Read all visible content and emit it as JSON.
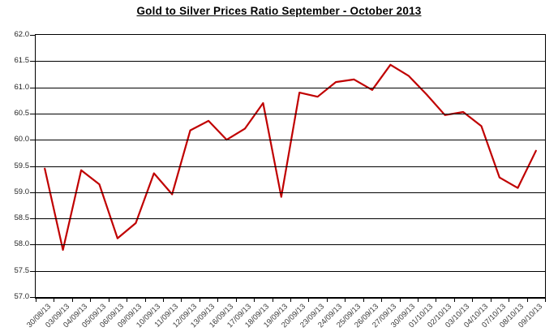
{
  "title": "Gold to Silver Prices Ratio September - October 2013",
  "chart_data": {
    "type": "line",
    "title": "Gold to Silver Prices Ratio September - October 2013",
    "categories": [
      "30/08/13",
      "03/09/13",
      "04/09/13",
      "05/09/13",
      "06/09/13",
      "09/09/13",
      "10/09/13",
      "11/09/13",
      "12/09/13",
      "13/09/13",
      "16/09/13",
      "17/09/13",
      "18/09/13",
      "19/09/13",
      "20/09/13",
      "23/09/13",
      "24/09/13",
      "25/09/13",
      "26/09/13",
      "27/09/13",
      "30/09/13",
      "01/10/13",
      "02/10/13",
      "03/10/13",
      "04/10/13",
      "07/10/13",
      "08/10/13",
      "09/10/13"
    ],
    "values": [
      59.45,
      57.9,
      59.42,
      59.15,
      58.12,
      58.41,
      59.36,
      58.96,
      60.18,
      60.36,
      60.0,
      60.21,
      60.7,
      58.91,
      60.9,
      60.82,
      61.1,
      61.15,
      60.95,
      61.43,
      61.22,
      60.86,
      60.47,
      60.53,
      60.26,
      59.28,
      59.08,
      59.79
    ],
    "xlabel": "",
    "ylabel": "",
    "ylim": [
      57.0,
      62.0
    ],
    "y_tick_step": 0.5,
    "y_tick_labels": [
      "62.0",
      "61.5",
      "61.0",
      "60.5",
      "60.0",
      "59.5",
      "59.0",
      "58.5",
      "58.0",
      "57.5",
      "57.0"
    ],
    "grid": "horizontal",
    "legend": "none",
    "line_color": "#C00000"
  }
}
